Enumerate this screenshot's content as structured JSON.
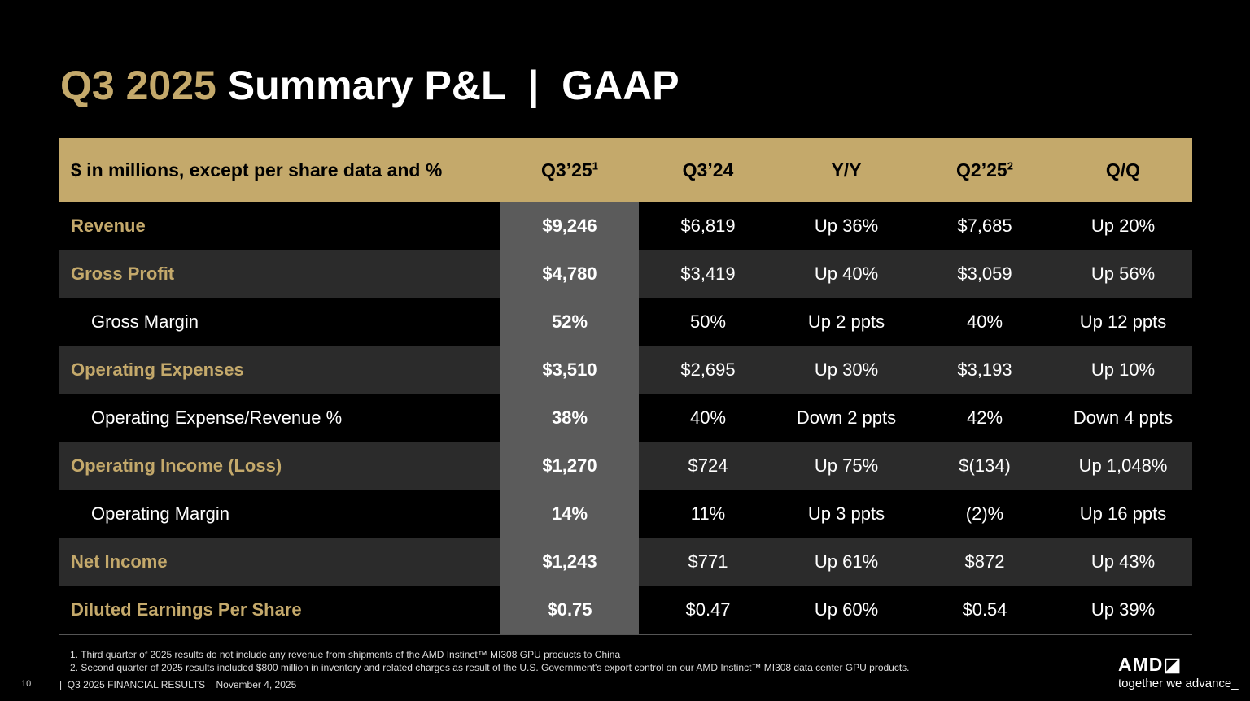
{
  "title": {
    "highlight": "Q3 2025",
    "rest": " Summary P&L  |  GAAP"
  },
  "table": {
    "headers": [
      {
        "label": "$ in millions, except per share data and %",
        "sup": ""
      },
      {
        "label": "Q3’25",
        "sup": "1"
      },
      {
        "label": "Q3’24",
        "sup": ""
      },
      {
        "label": "Y/Y",
        "sup": ""
      },
      {
        "label": "Q2’25",
        "sup": "2"
      },
      {
        "label": "Q/Q",
        "sup": ""
      }
    ],
    "rows": [
      {
        "label": "Revenue",
        "cells": [
          "$9,246",
          "$6,819",
          "Up 36%",
          "$7,685",
          "Up 20%"
        ]
      },
      {
        "label": "Gross Profit",
        "cells": [
          "$4,780",
          "$3,419",
          "Up 40%",
          "$3,059",
          "Up 56%"
        ]
      },
      {
        "label": "Gross Margin",
        "cells": [
          "52%",
          "50%",
          "Up 2 ppts",
          "40%",
          "Up 12 ppts"
        ]
      },
      {
        "label": "Operating Expenses",
        "cells": [
          "$3,510",
          "$2,695",
          "Up 30%",
          "$3,193",
          "Up 10%"
        ]
      },
      {
        "label": "Operating Expense/Revenue %",
        "cells": [
          "38%",
          "40%",
          "Down 2 ppts",
          "42%",
          "Down 4 ppts"
        ]
      },
      {
        "label": "Operating Income (Loss)",
        "cells": [
          "$1,270",
          "$724",
          "Up 75%",
          "$(134)",
          "Up 1,048%"
        ]
      },
      {
        "label": "Operating Margin",
        "cells": [
          "14%",
          "11%",
          "Up 3 ppts",
          "(2)%",
          "Up 16 ppts"
        ]
      },
      {
        "label": "Net Income",
        "cells": [
          "$1,243",
          "$771",
          "Up 61%",
          "$872",
          "Up 43%"
        ]
      },
      {
        "label": "Diluted Earnings Per Share",
        "cells": [
          "$0.75",
          "$0.47",
          "Up 60%",
          "$0.54",
          "Up 39%"
        ]
      }
    ]
  },
  "footnotes": [
    "1. Third quarter of 2025 results do not include any revenue from shipments of the AMD Instinct™ MI308 GPU products to China",
    "2. Second quarter of 2025 results included $800 million in inventory and related charges as result of the U.S. Government's export control on our AMD Instinct™ MI308 data center GPU products."
  ],
  "footer": {
    "page": "10",
    "text": "|  Q3 2025 FINANCIAL RESULTS    November 4, 2025"
  },
  "brand": {
    "logo": "AMD",
    "tagline": "together we advance_"
  },
  "colors": {
    "gold": "#c4a96b",
    "highlight_col": "#5b5b5b",
    "alt_row": "#2b2b2b"
  }
}
